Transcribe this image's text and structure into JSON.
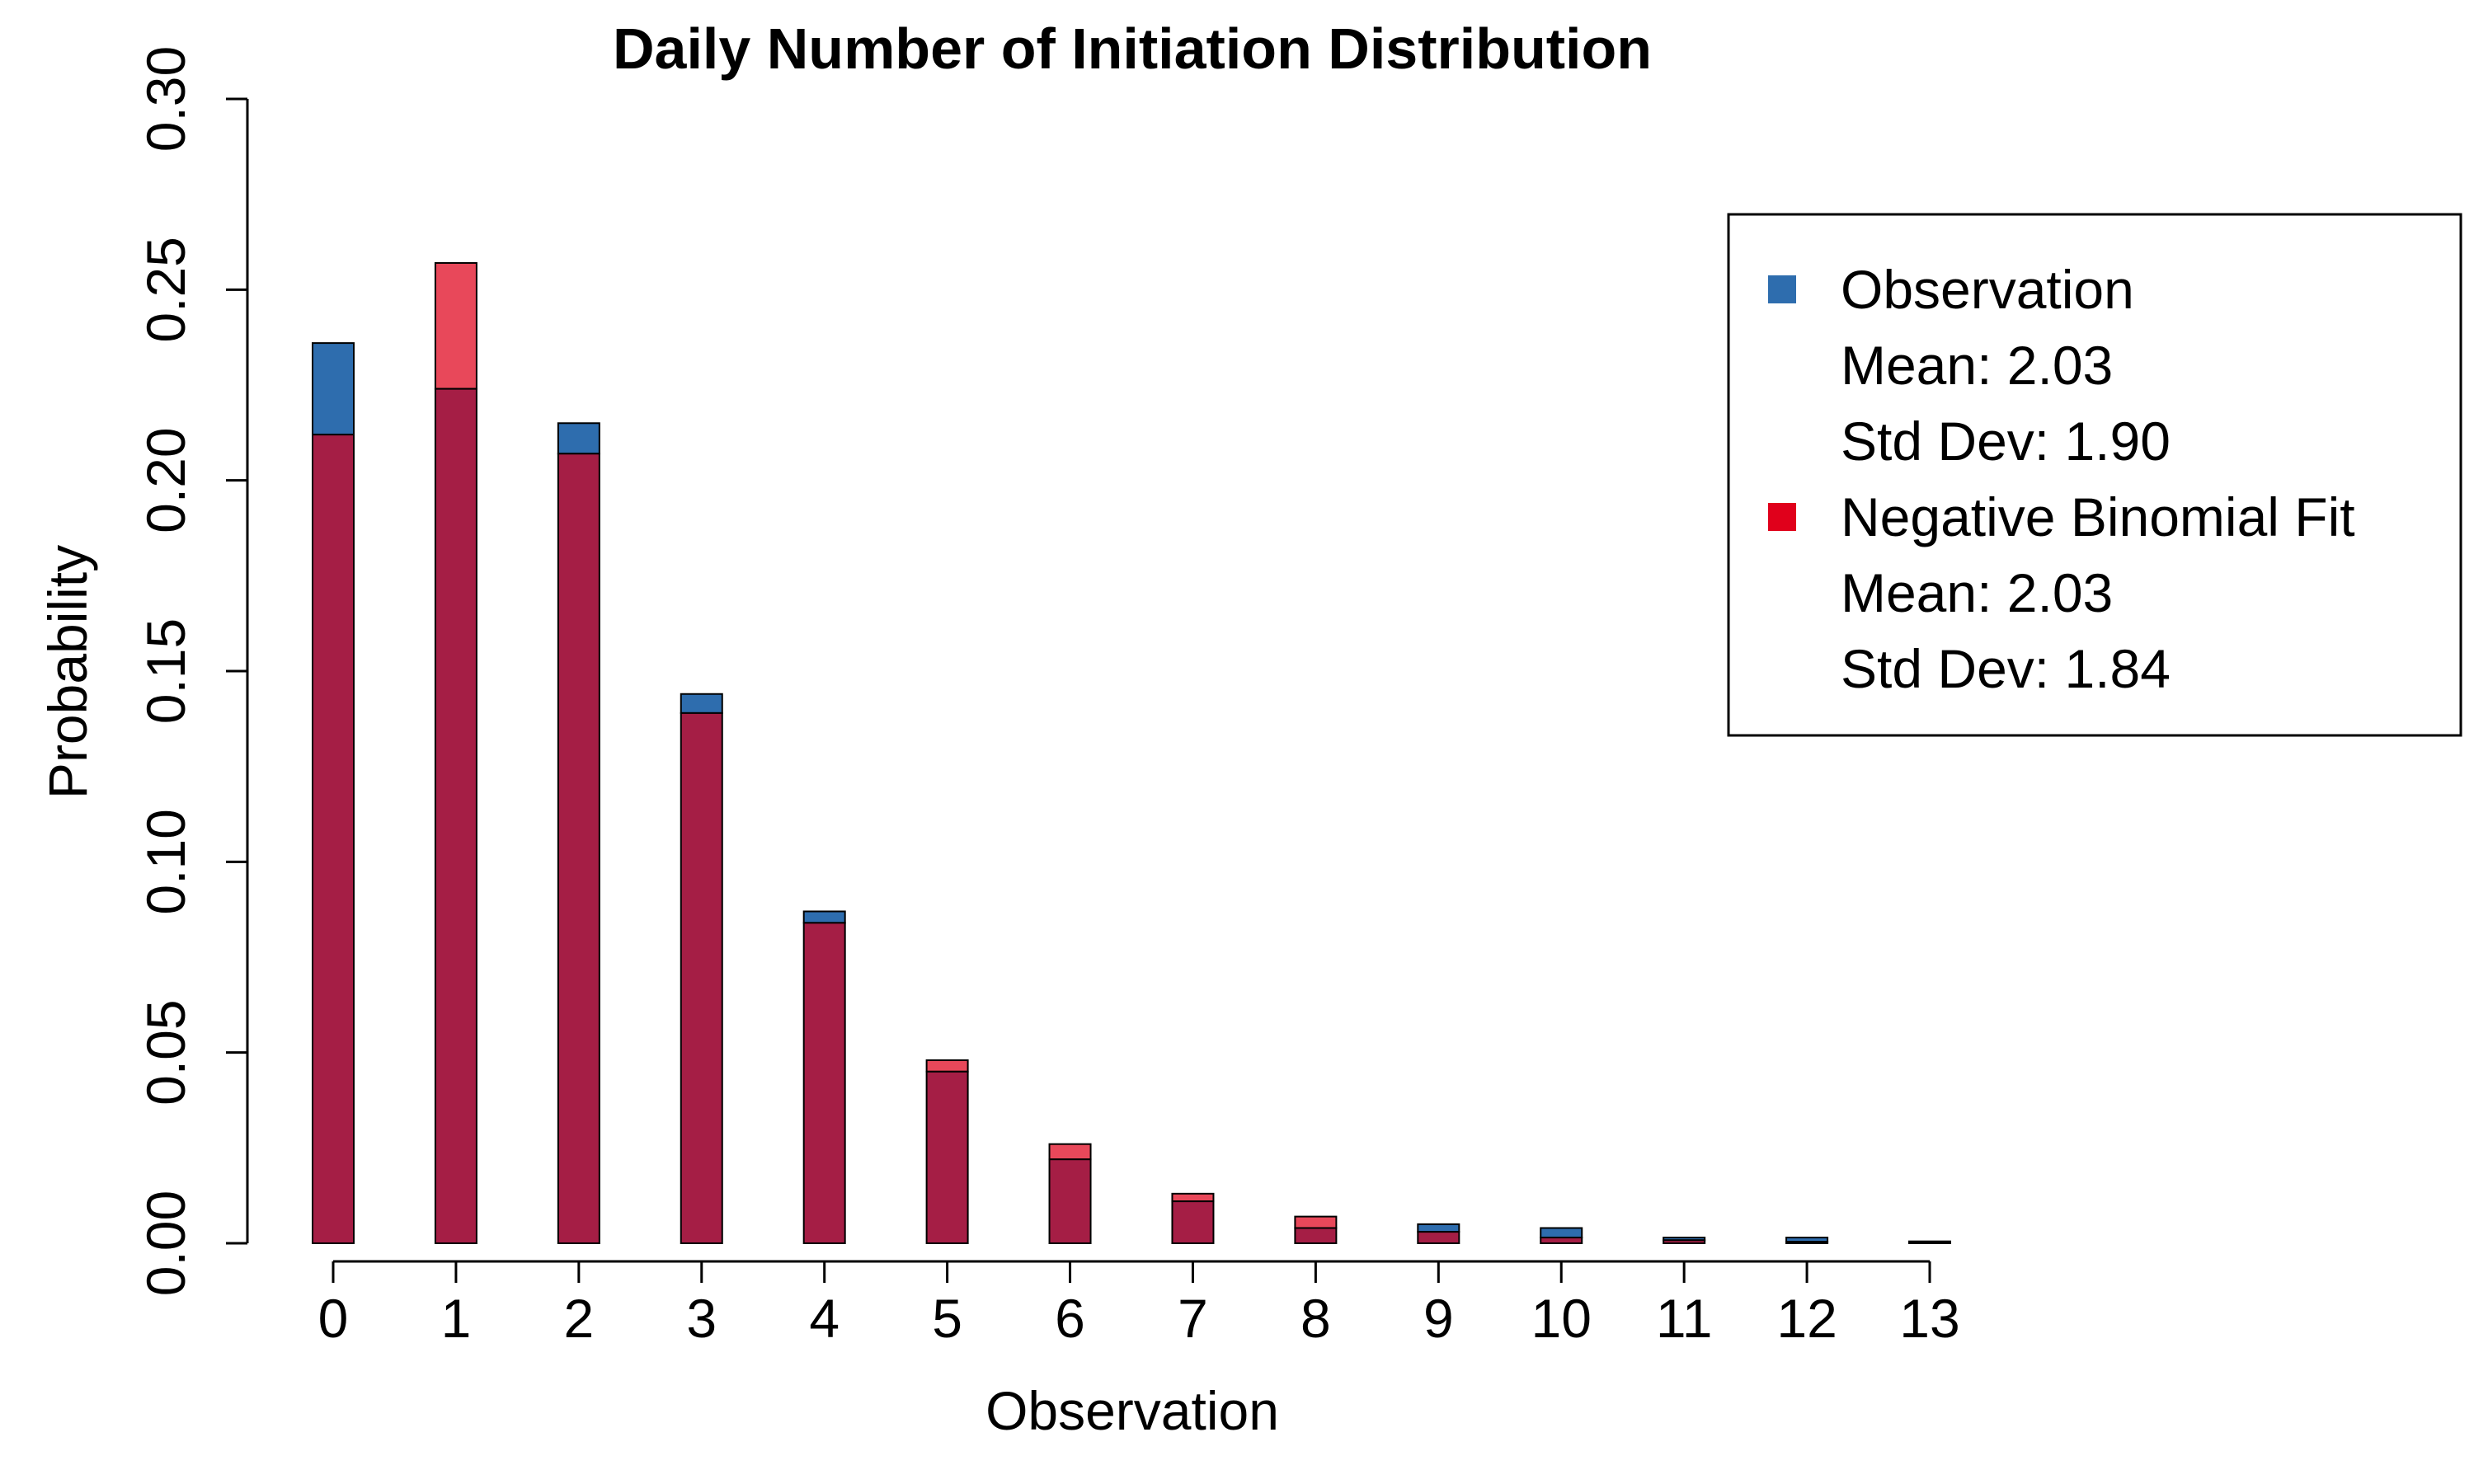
{
  "chart_data": {
    "type": "bar",
    "title": "Daily Number of Initiation Distribution",
    "xlabel": "Observation",
    "ylabel": "Probability",
    "ylim": [
      0,
      0.3
    ],
    "yticks": [
      "0.00",
      "0.05",
      "0.10",
      "0.15",
      "0.20",
      "0.25",
      "0.30"
    ],
    "categories": [
      "0",
      "1",
      "2",
      "3",
      "4",
      "5",
      "6",
      "7",
      "8",
      "9",
      "10",
      "11",
      "12",
      "13"
    ],
    "series": [
      {
        "name": "Observation",
        "color": "#2E6DAE",
        "values": [
          0.236,
          0.224,
          0.215,
          0.144,
          0.087,
          0.045,
          0.022,
          0.011,
          0.004,
          0.005,
          0.004,
          0.0015,
          0.0015,
          0.0005
        ]
      },
      {
        "name": "Negative Binomial Fit",
        "color": "#E8485A",
        "values": [
          0.212,
          0.257,
          0.207,
          0.139,
          0.084,
          0.048,
          0.026,
          0.013,
          0.007,
          0.003,
          0.0015,
          0.0008,
          0.0004,
          0.0002
        ]
      }
    ],
    "overlap_color": "#A51E45",
    "legend": {
      "position": "top-right",
      "entries": [
        {
          "label": "Observation",
          "color": "#2E6DAE",
          "lines": [
            "Mean: 2.03",
            "Std Dev: 1.90"
          ]
        },
        {
          "label": "Negative Binomial Fit",
          "color": "#E0001B",
          "lines": [
            "Mean: 2.03",
            "Std Dev: 1.84"
          ]
        }
      ]
    }
  }
}
